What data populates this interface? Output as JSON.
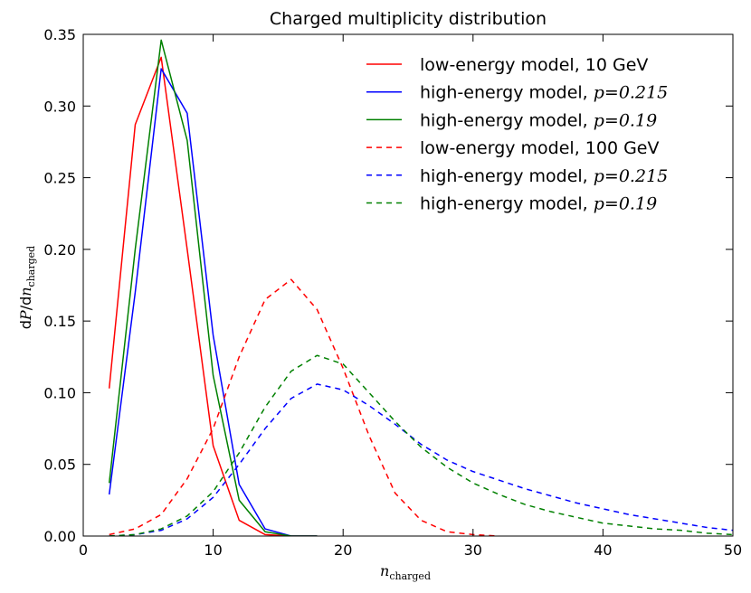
{
  "chart_data": {
    "type": "line",
    "title": "Charged multiplicity distribution",
    "xlabel": {
      "main": "n",
      "sub": "charged"
    },
    "ylabel": {
      "prefix": "d",
      "script": "P",
      "mid": "/d",
      "main": "n",
      "sub": "charged"
    },
    "xlim": [
      0,
      50
    ],
    "ylim": [
      0,
      0.35
    ],
    "xticks": [
      0,
      10,
      20,
      30,
      40,
      50
    ],
    "xtick_labels": [
      "0",
      "10",
      "20",
      "30",
      "40",
      "50"
    ],
    "yticks": [
      0,
      0.05,
      0.1,
      0.15,
      0.2,
      0.25,
      0.3,
      0.35
    ],
    "ytick_labels": [
      "0.00",
      "0.05",
      "0.10",
      "0.15",
      "0.20",
      "0.25",
      "0.30",
      "0.35"
    ],
    "grid": false,
    "legend_position": "top-right",
    "series": [
      {
        "name": "low-energy model, 10 GeV",
        "legend_text": "low-energy model, 10 GeV",
        "legend_math": "",
        "color": "#ff0000",
        "dash": "solid",
        "x": [
          2,
          4,
          6,
          8,
          10,
          12,
          14,
          16,
          18
        ],
        "y": [
          0.103,
          0.287,
          0.334,
          0.2,
          0.063,
          0.011,
          0.001,
          0.0,
          0.0
        ]
      },
      {
        "name": "high-energy model, p=0.215",
        "legend_text": "high-energy model, ",
        "legend_math": "p=0.215",
        "color": "#0000ff",
        "dash": "solid",
        "x": [
          2,
          4,
          6,
          8,
          10,
          12,
          14,
          16,
          18
        ],
        "y": [
          0.029,
          0.17,
          0.326,
          0.295,
          0.14,
          0.036,
          0.005,
          0.0,
          0.0
        ]
      },
      {
        "name": "high-energy model, p=0.19",
        "legend_text": "high-energy model, ",
        "legend_math": "p=0.19",
        "color": "#008000",
        "dash": "solid",
        "x": [
          2,
          4,
          6,
          8,
          10,
          12,
          14,
          16,
          18
        ],
        "y": [
          0.037,
          0.2,
          0.346,
          0.276,
          0.112,
          0.025,
          0.003,
          0.0,
          0.0
        ]
      },
      {
        "name": "low-energy model, 100 GeV",
        "legend_text": "low-energy model, 100 GeV",
        "legend_math": "",
        "color": "#ff0000",
        "dash": "dashed",
        "x": [
          2,
          4,
          6,
          8,
          10,
          12,
          14,
          16,
          18,
          20,
          22,
          24,
          26,
          28,
          30,
          32
        ],
        "y": [
          0.001,
          0.005,
          0.015,
          0.04,
          0.075,
          0.125,
          0.165,
          0.179,
          0.158,
          0.117,
          0.07,
          0.03,
          0.011,
          0.003,
          0.001,
          0.0
        ]
      },
      {
        "name": "high-energy model, p=0.215",
        "legend_text": "high-energy model, ",
        "legend_math": "p=0.215",
        "color": "#0000ff",
        "dash": "dashed",
        "x": [
          2,
          4,
          6,
          8,
          10,
          12,
          14,
          16,
          18,
          20,
          22,
          24,
          26,
          28,
          30,
          32,
          34,
          36,
          38,
          40,
          42,
          44,
          46,
          48,
          50
        ],
        "y": [
          0.0,
          0.001,
          0.004,
          0.012,
          0.027,
          0.05,
          0.075,
          0.096,
          0.106,
          0.102,
          0.091,
          0.078,
          0.064,
          0.053,
          0.045,
          0.039,
          0.033,
          0.028,
          0.023,
          0.019,
          0.015,
          0.012,
          0.009,
          0.006,
          0.004
        ]
      },
      {
        "name": "high-energy model, p=0.19",
        "legend_text": "high-energy model, ",
        "legend_math": "p=0.19",
        "color": "#008000",
        "dash": "dashed",
        "x": [
          2,
          4,
          6,
          8,
          10,
          12,
          14,
          16,
          18,
          20,
          22,
          24,
          26,
          28,
          30,
          32,
          34,
          36,
          38,
          40,
          42,
          44,
          46,
          48,
          50
        ],
        "y": [
          0.0,
          0.001,
          0.005,
          0.014,
          0.031,
          0.058,
          0.09,
          0.115,
          0.126,
          0.12,
          0.1,
          0.08,
          0.062,
          0.048,
          0.037,
          0.029,
          0.022,
          0.017,
          0.013,
          0.009,
          0.007,
          0.005,
          0.004,
          0.002,
          0.001
        ]
      }
    ]
  }
}
